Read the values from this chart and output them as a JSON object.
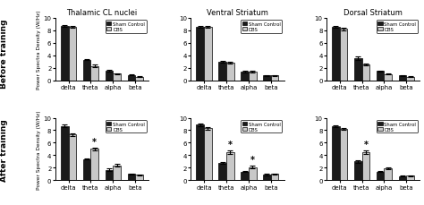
{
  "col_titles": [
    "Thalamic CL nuclei",
    "Ventral Striatum",
    "Dorsal Striatum"
  ],
  "row_titles": [
    "Before training",
    "After training"
  ],
  "categories": [
    "delta",
    "theta",
    "alpha",
    "beta"
  ],
  "ylabel": "Power Spectra Density (W/Hz)",
  "ylim": [
    0,
    10
  ],
  "yticks": [
    0,
    2,
    4,
    6,
    8,
    10
  ],
  "bar_width": 0.35,
  "sham_color": "#1a1a1a",
  "dbs_color": "#c8c8c8",
  "before": {
    "thalamic": {
      "sham": [
        8.7,
        3.3,
        1.5,
        0.85
      ],
      "dbs": [
        8.5,
        2.3,
        1.05,
        0.55
      ],
      "sham_err": [
        0.15,
        0.12,
        0.1,
        0.08
      ],
      "dbs_err": [
        0.18,
        0.15,
        0.1,
        0.07
      ],
      "asterisk": [
        false,
        false,
        false,
        false
      ]
    },
    "ventral": {
      "sham": [
        8.5,
        2.9,
        1.35,
        0.75
      ],
      "dbs": [
        8.5,
        2.85,
        1.35,
        0.75
      ],
      "sham_err": [
        0.15,
        0.15,
        0.12,
        0.08
      ],
      "dbs_err": [
        0.15,
        0.15,
        0.12,
        0.08
      ],
      "asterisk": [
        false,
        false,
        false,
        false
      ]
    },
    "dorsal": {
      "sham": [
        8.5,
        3.5,
        1.45,
        0.75
      ],
      "dbs": [
        8.2,
        2.5,
        1.0,
        0.55
      ],
      "sham_err": [
        0.15,
        0.25,
        0.1,
        0.07
      ],
      "dbs_err": [
        0.18,
        0.15,
        0.08,
        0.06
      ],
      "asterisk": [
        false,
        false,
        false,
        false
      ]
    }
  },
  "after": {
    "thalamic": {
      "sham": [
        8.7,
        3.4,
        1.7,
        1.0
      ],
      "dbs": [
        7.3,
        5.0,
        2.4,
        0.85
      ],
      "sham_err": [
        0.18,
        0.12,
        0.15,
        0.08
      ],
      "dbs_err": [
        0.25,
        0.2,
        0.25,
        0.1
      ],
      "asterisk": [
        false,
        true,
        false,
        false
      ]
    },
    "ventral": {
      "sham": [
        8.9,
        2.8,
        1.4,
        0.9
      ],
      "dbs": [
        8.3,
        4.5,
        2.1,
        1.0
      ],
      "sham_err": [
        0.2,
        0.15,
        0.12,
        0.1
      ],
      "dbs_err": [
        0.25,
        0.25,
        0.18,
        0.1
      ],
      "asterisk": [
        false,
        true,
        true,
        false
      ]
    },
    "dorsal": {
      "sham": [
        8.6,
        3.0,
        1.4,
        0.65
      ],
      "dbs": [
        8.2,
        4.5,
        1.9,
        0.75
      ],
      "sham_err": [
        0.15,
        0.2,
        0.12,
        0.07
      ],
      "dbs_err": [
        0.2,
        0.25,
        0.15,
        0.08
      ],
      "asterisk": [
        false,
        true,
        false,
        false
      ]
    }
  }
}
